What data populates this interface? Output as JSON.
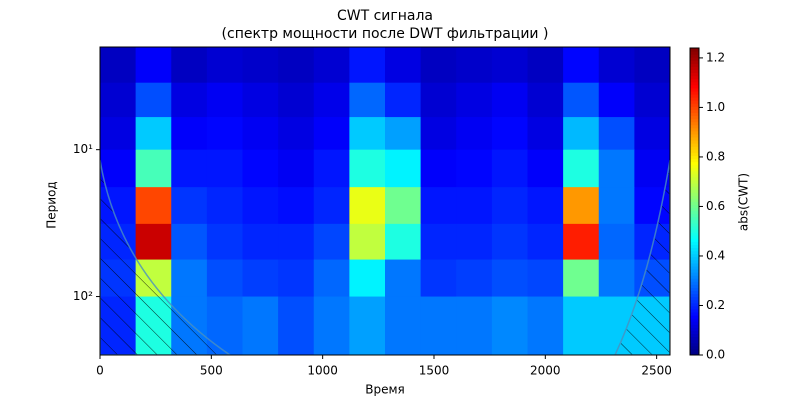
{
  "chart_data": {
    "type": "heatmap",
    "title": "CWT сигнала",
    "subtitle": "(спектр мощности после DWT фильтрации )",
    "xlabel": "Время",
    "ylabel": "Период",
    "colorbar_label": "abs(CWT)",
    "xlim": [
      0,
      2560
    ],
    "xticks": [
      0,
      500,
      1000,
      1500,
      2000,
      2500
    ],
    "ylim": [
      2,
      250
    ],
    "y_log": true,
    "y_inverted": true,
    "yticks": [
      {
        "value": 10,
        "label": "10¹"
      },
      {
        "value": 100,
        "label": "10²"
      }
    ],
    "clim": [
      0,
      1.24
    ],
    "cticks": [
      {
        "value": 0,
        "label": "0.0"
      },
      0.2,
      0.4,
      0.6,
      0.8,
      {
        "value": 1,
        "label": "1.0"
      },
      1.2
    ],
    "colormap": "jet",
    "x_edges": [
      0,
      160,
      320,
      480,
      640,
      800,
      960,
      1120,
      1280,
      1440,
      1600,
      1760,
      1920,
      2080,
      2240,
      2400,
      2560
    ],
    "y_edges": [
      2,
      3.5,
      6,
      10,
      18,
      32,
      56,
      100,
      250
    ],
    "z": [
      [
        0.08,
        0.15,
        0.08,
        0.1,
        0.09,
        0.08,
        0.1,
        0.18,
        0.12,
        0.08,
        0.09,
        0.1,
        0.08,
        0.16,
        0.1,
        0.08
      ],
      [
        0.1,
        0.25,
        0.12,
        0.14,
        0.12,
        0.1,
        0.13,
        0.28,
        0.2,
        0.1,
        0.12,
        0.14,
        0.1,
        0.26,
        0.15,
        0.1
      ],
      [
        0.12,
        0.4,
        0.15,
        0.16,
        0.14,
        0.12,
        0.15,
        0.4,
        0.35,
        0.12,
        0.14,
        0.16,
        0.12,
        0.38,
        0.25,
        0.12
      ],
      [
        0.15,
        0.55,
        0.18,
        0.18,
        0.16,
        0.14,
        0.18,
        0.5,
        0.45,
        0.15,
        0.16,
        0.18,
        0.15,
        0.5,
        0.3,
        0.14
      ],
      [
        0.18,
        1.0,
        0.22,
        0.2,
        0.18,
        0.17,
        0.2,
        0.75,
        0.6,
        0.18,
        0.18,
        0.2,
        0.18,
        0.9,
        0.3,
        0.16
      ],
      [
        0.2,
        1.15,
        0.26,
        0.22,
        0.2,
        0.2,
        0.24,
        0.7,
        0.5,
        0.2,
        0.2,
        0.22,
        0.2,
        1.05,
        0.28,
        0.2
      ],
      [
        0.22,
        0.7,
        0.3,
        0.25,
        0.23,
        0.22,
        0.28,
        0.45,
        0.3,
        0.22,
        0.23,
        0.25,
        0.24,
        0.6,
        0.3,
        0.25
      ],
      [
        0.2,
        0.5,
        0.3,
        0.28,
        0.3,
        0.25,
        0.3,
        0.35,
        0.3,
        0.3,
        0.3,
        0.32,
        0.3,
        0.4,
        0.4,
        0.4
      ]
    ]
  }
}
